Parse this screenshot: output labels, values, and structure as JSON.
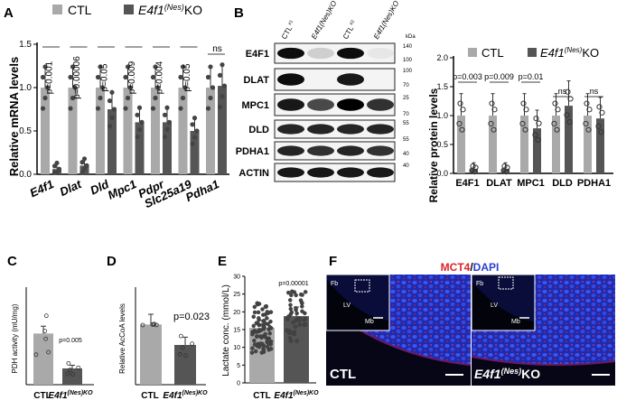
{
  "panels": {
    "A": {
      "letter": "A",
      "ylabel": "Relative mRNA levels",
      "legend": [
        "CTL",
        "E4f1",
        "(Nes)",
        "KO"
      ],
      "ylim": [
        0,
        1.5
      ],
      "yticks": [
        "0.0",
        "0.5",
        "1.0",
        "1.5"
      ]
    },
    "B": {
      "letter": "B",
      "blot_labels": [
        "E4F1",
        "DLAT",
        "MPC1",
        "DLD",
        "PDHA1",
        "ACTIN"
      ],
      "lanes": [
        "CTL",
        "#1",
        "E4f1",
        "(Nes)KO",
        "#1",
        "CTL",
        "#2",
        "E4f1",
        "(Nes)KO",
        "#2"
      ],
      "kda_label": "kDa",
      "kda_marks": [
        "140",
        "100",
        "100",
        "70",
        "25",
        "70",
        "55",
        "55",
        "40",
        "40"
      ],
      "ylabel": "Relative protein levels",
      "legend": [
        "CTL",
        "E4f1",
        "(Nes)",
        "KO"
      ],
      "yticks": [
        "0.0",
        "0.5",
        "1.0",
        "1.5",
        "2.0"
      ]
    },
    "C": {
      "letter": "C",
      "ylabel": "PDH activity (mU/mg)",
      "annotation": "p=0.005",
      "xtick_ctl": "CTL",
      "xtick_ko": [
        "E4f1",
        "(Nes)KO"
      ]
    },
    "D": {
      "letter": "D",
      "ylabel": "Relative AcCoA levels",
      "annotation": "p=0.023",
      "xtick_ctl": "CTL",
      "xtick_ko": [
        "E4f1",
        "(Nes)KO"
      ]
    },
    "E": {
      "letter": "E",
      "ylabel": "Lactate conc. (mmol/L)",
      "annotation": "p=0.00001",
      "yticks": [
        "0",
        "5",
        "10",
        "15",
        "20",
        "25",
        "30"
      ],
      "xtick_ctl": "CTL",
      "xtick_ko": [
        "E4f1",
        "(Nes)KO"
      ]
    },
    "F": {
      "letter": "F",
      "title_mct4": "MCT4",
      "title_slash": "/",
      "title_dapi": "DAPI",
      "left_label": "CTL",
      "right_label": [
        "E4f1",
        "(Nes)",
        "KO"
      ],
      "inset_labels": [
        "Fb",
        "LV",
        "Mb"
      ]
    }
  },
  "colors": {
    "ctl": "#a9a9a9",
    "ko": "#555555",
    "dots": "#444444",
    "mct4": "#e0202a",
    "dapi": "#2a3fd4",
    "blot_bg": "#f4f4f4"
  },
  "chart_data": [
    {
      "panel": "A",
      "type": "bar",
      "title": "",
      "ylabel": "Relative mRNA levels",
      "ylim": [
        0,
        1.5
      ],
      "categories": [
        "E4f1",
        "Dlat",
        "Dld",
        "Mpc1",
        "Pdpr",
        "Slc25a19",
        "Pdha1"
      ],
      "series": [
        {
          "name": "CTL",
          "values": [
            1.0,
            1.0,
            1.0,
            1.0,
            1.0,
            1.0,
            1.0
          ]
        },
        {
          "name": "E4f1(Nes)KO",
          "values": [
            0.06,
            0.1,
            0.75,
            0.6,
            0.6,
            0.5,
            1.02
          ]
        }
      ],
      "p_values": [
        "p=0.001",
        "p=0.00006",
        "p=0.05",
        "p=0.009",
        "p=0.004",
        "p=0.05",
        "ns"
      ]
    },
    {
      "panel": "B",
      "type": "bar",
      "title": "",
      "ylabel": "Relative protein levels",
      "ylim": [
        0,
        2.0
      ],
      "categories": [
        "E4F1",
        "DLAT",
        "MPC1",
        "DLD",
        "PDHA1"
      ],
      "series": [
        {
          "name": "CTL",
          "values": [
            1.0,
            1.0,
            1.0,
            1.0,
            1.0
          ]
        },
        {
          "name": "E4f1(Nes)KO",
          "values": [
            0.08,
            0.08,
            0.78,
            1.17,
            0.95
          ]
        }
      ],
      "p_values": [
        "p=0.003",
        "p=0.009",
        "p=0.01",
        "ns",
        "ns"
      ]
    },
    {
      "panel": "C",
      "type": "bar",
      "ylabel": "PDH activity (mU/mg)",
      "categories": [
        "CTL",
        "E4f1(Nes)KO"
      ],
      "values": [
        0.85,
        0.27
      ],
      "ylim": [
        0,
        1.5
      ]
    },
    {
      "panel": "D",
      "type": "bar",
      "ylabel": "Relative AcCoA levels",
      "categories": [
        "CTL",
        "E4f1(Nes)KO"
      ],
      "values": [
        1.0,
        0.66
      ],
      "ylim": [
        0,
        1.5
      ]
    },
    {
      "panel": "E",
      "type": "bar",
      "ylabel": "Lactate conc. (mmol/L)",
      "categories": [
        "CTL",
        "E4f1(Nes)KO"
      ],
      "values": [
        15.5,
        18.8
      ],
      "ylim": [
        0,
        30
      ]
    }
  ]
}
